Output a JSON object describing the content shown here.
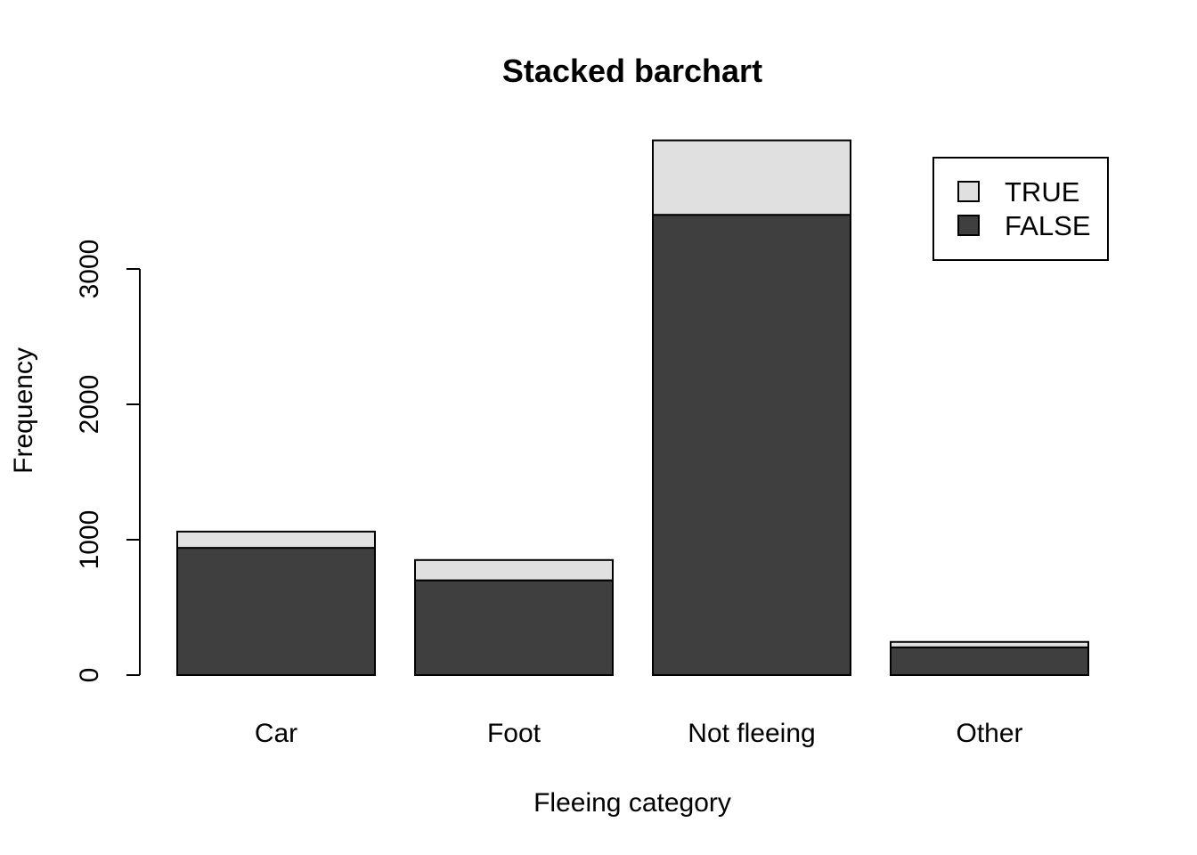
{
  "chart_data": {
    "type": "bar",
    "stacked": true,
    "title": "Stacked barchart",
    "xlabel": "Fleeing category",
    "ylabel": "Frequency",
    "categories": [
      "Car",
      "Foot",
      "Not fleeing",
      "Other"
    ],
    "series": [
      {
        "name": "FALSE",
        "color": "#3f3f3f",
        "values": [
          940,
          700,
          3400,
          205
        ]
      },
      {
        "name": "TRUE",
        "color": "#e0e0e0",
        "values": [
          120,
          150,
          550,
          40
        ]
      }
    ],
    "yticks": [
      0,
      1000,
      2000,
      3000
    ],
    "ylim": [
      0,
      3950
    ],
    "legend": {
      "position": "top-right",
      "order": [
        "TRUE",
        "FALSE"
      ]
    },
    "grid": false
  }
}
